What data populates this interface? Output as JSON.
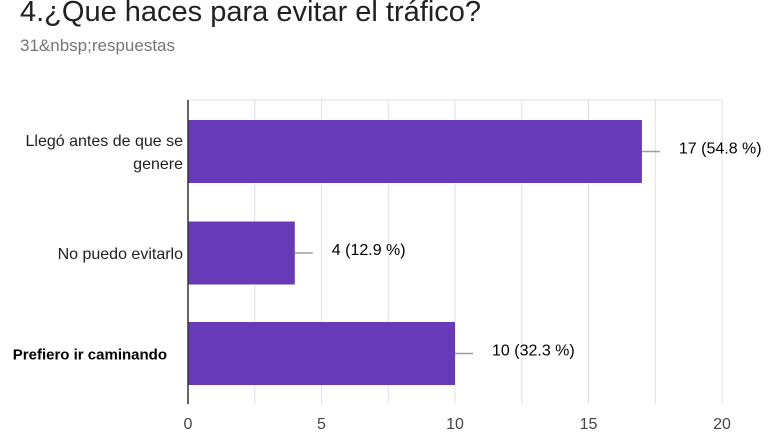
{
  "header": {
    "title": "4.¿Que haces para evitar el tráfico?",
    "subtitle": "31&nbsp;respuestas"
  },
  "colors": {
    "bar": "#673ab7",
    "grid": "#e0e0e0",
    "axis": "#333333",
    "connector": "#9e9e9e"
  },
  "chart_data": {
    "type": "bar",
    "orientation": "horizontal",
    "categories": [
      {
        "lines": [
          "Llegó antes de que se",
          "genere"
        ],
        "bold": false
      },
      {
        "lines": [
          "No puedo evitarlo"
        ],
        "bold": false
      },
      {
        "lines": [
          "Prefiero ir caminando"
        ],
        "bold": true
      }
    ],
    "values": [
      17,
      4,
      10
    ],
    "data_labels": [
      "17 (54.8 %)",
      "4 (12.9 %)",
      "10 (32.3 %)"
    ],
    "xlim": [
      0,
      20
    ],
    "xticks": [
      0,
      5,
      10,
      15,
      20
    ],
    "xtick_labels": [
      "0",
      "5",
      "10",
      "15",
      "20"
    ],
    "grid": true
  }
}
